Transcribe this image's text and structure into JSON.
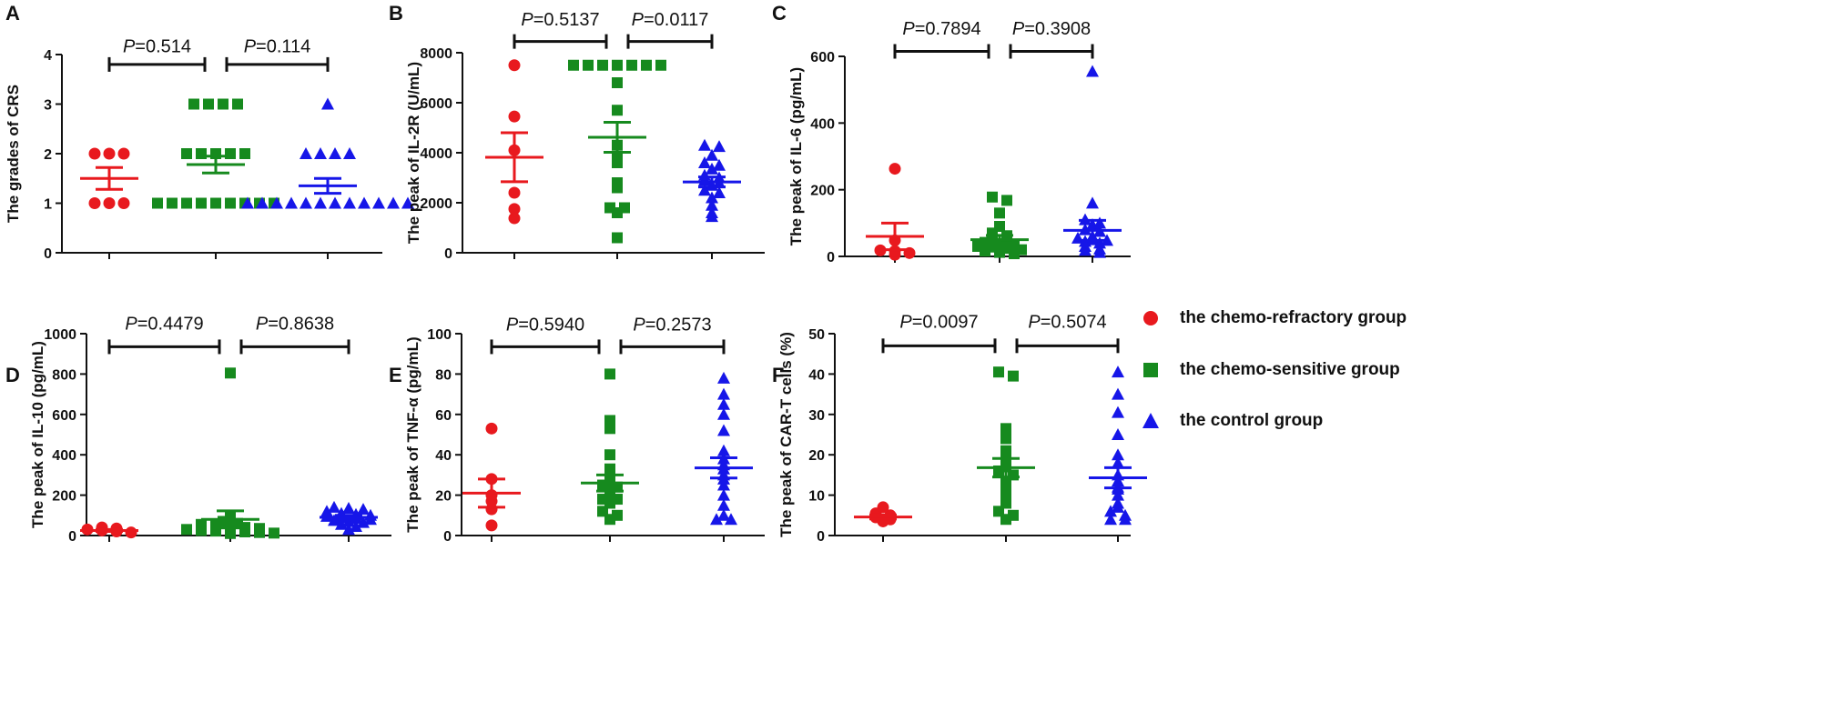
{
  "colors": {
    "refractory": "#e8191e",
    "sensitive": "#168a1e",
    "control": "#1616e8"
  },
  "legend": [
    {
      "label": "the chemo-refractory group",
      "color": "#e8191e",
      "shape": "circle"
    },
    {
      "label": "the chemo-sensitive group",
      "color": "#168a1e",
      "shape": "square"
    },
    {
      "label": "the control group",
      "color": "#1616e8",
      "shape": "triangle"
    }
  ],
  "chart_data": [
    {
      "type": "scatter",
      "panel": "A",
      "ylabel": "The grades of CRS",
      "ylim": [
        0,
        4
      ],
      "yticks": [
        "0",
        "1",
        "2",
        "3",
        "4"
      ],
      "series": [
        {
          "name": "the chemo-refractory group",
          "values": [
            2,
            2,
            2,
            1,
            1,
            1
          ],
          "mean": 1.5,
          "sem": 0.22
        },
        {
          "name": "the chemo-sensitive group",
          "values": [
            3,
            3,
            3,
            3,
            2,
            2,
            2,
            2,
            2,
            1,
            1,
            1,
            1,
            1,
            1,
            1,
            1,
            1
          ],
          "mean": 1.78,
          "sem": 0.17
        },
        {
          "name": "the control group",
          "values": [
            3,
            2,
            2,
            2,
            2,
            1,
            1,
            1,
            1,
            1,
            1,
            1,
            1,
            1,
            1,
            1,
            1
          ],
          "mean": 1.35,
          "sem": 0.15
        }
      ],
      "comparisons": [
        {
          "from": 0,
          "to": 1,
          "p_label": "P",
          "p_value": "=0.514"
        },
        {
          "from": 1,
          "to": 2,
          "p_label": "P",
          "p_value": "=0.114"
        }
      ],
      "bracket_y": 3.8,
      "label_y": 4.05
    },
    {
      "type": "scatter",
      "panel": "B",
      "ylabel": "The peak of IL-2R (U/mL)",
      "ylim": [
        0,
        8000
      ],
      "yticks": [
        "0",
        "2000",
        "4000",
        "6000",
        "8000"
      ],
      "series": [
        {
          "name": "the chemo-refractory group",
          "values": [
            7500,
            5450,
            4100,
            2400,
            1750,
            1380
          ],
          "mean": 3820,
          "sem": 980
        },
        {
          "name": "the chemo-sensitive group",
          "values": [
            7500,
            7500,
            7500,
            7500,
            7500,
            7500,
            7500,
            6800,
            5700,
            4300,
            3800,
            3600,
            2800,
            2600,
            1800,
            1800,
            1600,
            600
          ],
          "mean": 4620,
          "sem": 600
        },
        {
          "name": "the control group",
          "values": [
            4300,
            4250,
            3900,
            3600,
            3500,
            3350,
            3100,
            3000,
            2900,
            2800,
            2700,
            2500,
            2400,
            2200,
            1900,
            1600,
            1450
          ],
          "mean": 2830,
          "sem": 200
        }
      ],
      "comparisons": [
        {
          "from": 0,
          "to": 1,
          "p_label": "P",
          "p_value": "=0.5137"
        },
        {
          "from": 1,
          "to": 2,
          "p_label": "P",
          "p_value": "=0.0117"
        }
      ],
      "bracket_y": 8450,
      "label_y": 9100
    },
    {
      "type": "scatter",
      "panel": "C",
      "ylabel": "The peak of IL-6 (pg/mL)",
      "ylim": [
        0,
        600
      ],
      "yticks": [
        "0",
        "200",
        "400",
        "600"
      ],
      "series": [
        {
          "name": "the chemo-refractory group",
          "values": [
            263,
            48,
            18,
            16,
            10,
            5
          ],
          "mean": 60,
          "sem": 40
        },
        {
          "name": "the chemo-sensitive group",
          "values": [
            178,
            168,
            130,
            90,
            70,
            62,
            55,
            48,
            42,
            38,
            34,
            30,
            28,
            24,
            20,
            16,
            12,
            8
          ],
          "mean": 50,
          "sem": 13
        },
        {
          "name": "the control group",
          "values": [
            555,
            160,
            110,
            100,
            95,
            80,
            75,
            60,
            55,
            50,
            48,
            45,
            40,
            30,
            22,
            18,
            12
          ],
          "mean": 78,
          "sem": 30
        }
      ],
      "comparisons": [
        {
          "from": 0,
          "to": 1,
          "p_label": "P",
          "p_value": "=0.7894"
        },
        {
          "from": 1,
          "to": 2,
          "p_label": "P",
          "p_value": "=0.3908"
        }
      ],
      "bracket_y": 615,
      "label_y": 665
    },
    {
      "type": "scatter",
      "panel": "D",
      "ylabel": "The peak of IL-10 (pg/mL)",
      "ylim": [
        0,
        1000
      ],
      "yticks": [
        "0",
        "200",
        "400",
        "600",
        "800",
        "1000"
      ],
      "series": [
        {
          "name": "the chemo-refractory group",
          "values": [
            40,
            35,
            30,
            25,
            20,
            15
          ],
          "mean": 25,
          "sem": 5
        },
        {
          "name": "the chemo-sensitive group",
          "values": [
            805,
            100,
            80,
            70,
            60,
            55,
            50,
            45,
            40,
            35,
            30,
            25,
            22,
            20,
            18,
            15,
            12,
            10
          ],
          "mean": 80,
          "sem": 42
        },
        {
          "name": "the control group",
          "values": [
            140,
            135,
            130,
            120,
            110,
            105,
            100,
            95,
            90,
            85,
            80,
            75,
            70,
            65,
            55,
            45,
            30
          ],
          "mean": 90,
          "sem": 10
        }
      ],
      "comparisons": [
        {
          "from": 0,
          "to": 1,
          "p_label": "P",
          "p_value": "=0.4479"
        },
        {
          "from": 1,
          "to": 2,
          "p_label": "P",
          "p_value": "=0.8638"
        }
      ],
      "bracket_y": 935,
      "label_y": 1020
    },
    {
      "type": "scatter",
      "panel": "E",
      "ylabel": "The peak of TNF-α  (pg/mL)",
      "ylim": [
        0,
        100
      ],
      "yticks": [
        "0",
        "20",
        "40",
        "60",
        "80",
        "100"
      ],
      "series": [
        {
          "name": "the chemo-refractory group",
          "values": [
            53,
            28,
            20,
            17,
            13,
            5
          ],
          "mean": 21,
          "sem": 7
        },
        {
          "name": "the chemo-sensitive group",
          "values": [
            80,
            57,
            53,
            40,
            33,
            30,
            28,
            26,
            25,
            24,
            22,
            20,
            18,
            18,
            16,
            12,
            10,
            8
          ],
          "mean": 26,
          "sem": 4
        },
        {
          "name": "the control group",
          "values": [
            78,
            70,
            65,
            60,
            52,
            42,
            38,
            35,
            33,
            30,
            28,
            25,
            20,
            15,
            10,
            8,
            8
          ],
          "mean": 33.5,
          "sem": 5
        }
      ],
      "comparisons": [
        {
          "from": 0,
          "to": 1,
          "p_label": "P",
          "p_value": "=0.5940"
        },
        {
          "from": 1,
          "to": 2,
          "p_label": "P",
          "p_value": "=0.2573"
        }
      ],
      "bracket_y": 93.5,
      "label_y": 101.5
    },
    {
      "type": "scatter",
      "panel": "F",
      "ylabel": "The peak of CAR-T cells (%)",
      "ylim": [
        0,
        50
      ],
      "yticks": [
        "0",
        "10",
        "20",
        "30",
        "40",
        "50"
      ],
      "series": [
        {
          "name": "the chemo-refractory group",
          "values": [
            7,
            5.5,
            5,
            4.5,
            4,
            3.5
          ],
          "mean": 4.6,
          "sem": 0.5
        },
        {
          "name": "the chemo-sensitive group",
          "values": [
            40.5,
            39.5,
            26.5,
            24,
            21,
            20,
            19,
            18,
            17,
            16,
            15,
            13,
            11.5,
            10,
            8,
            6,
            5,
            4
          ],
          "mean": 16.8,
          "sem": 2.3
        },
        {
          "name": "the control group",
          "values": [
            40.5,
            35,
            30.5,
            25,
            20,
            18,
            15,
            13.5,
            12,
            11.5,
            10,
            8,
            7,
            6,
            5,
            4,
            4
          ],
          "mean": 14.3,
          "sem": 2.5
        }
      ],
      "comparisons": [
        {
          "from": 0,
          "to": 1,
          "p_label": "P",
          "p_value": "=0.0097"
        },
        {
          "from": 1,
          "to": 2,
          "p_label": "P",
          "p_value": "=0.5074"
        }
      ],
      "bracket_y": 47,
      "label_y": 51.5
    }
  ]
}
